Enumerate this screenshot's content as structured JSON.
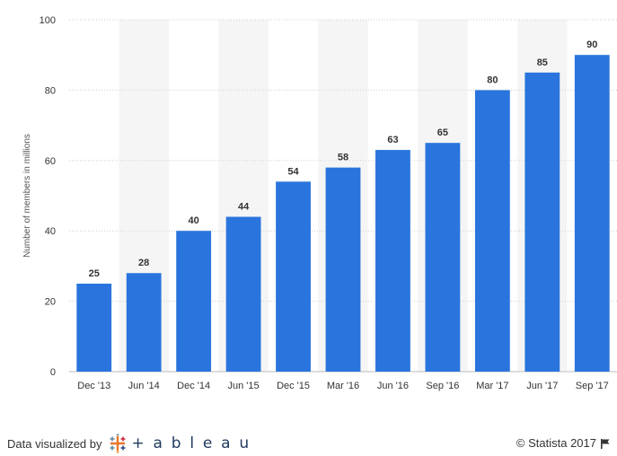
{
  "chart_data": {
    "type": "bar",
    "categories": [
      "Dec '13",
      "Jun '14",
      "Dec '14",
      "Jun '15",
      "Dec '15",
      "Mar '16",
      "Jun '16",
      "Sep '16",
      "Mar '17",
      "Jun '17",
      "Sep '17"
    ],
    "values": [
      25,
      28,
      40,
      44,
      54,
      58,
      63,
      65,
      80,
      85,
      90
    ],
    "title": "",
    "xlabel": "",
    "ylabel": "Number of members in millions",
    "ylim": [
      0,
      100
    ],
    "yticks": [
      0,
      20,
      40,
      60,
      80,
      100
    ],
    "grid": "horizontal dotted",
    "alternating_column_shading": true,
    "bar_color": "#2a75dd",
    "show_data_labels": true
  },
  "footer": {
    "credit_text": "Data visualized by",
    "brand": "+ a b l e a u",
    "brand_icon": "tableau-logo-icon",
    "copyright": "© Statista 2017",
    "flag_icon": "flag-icon"
  }
}
